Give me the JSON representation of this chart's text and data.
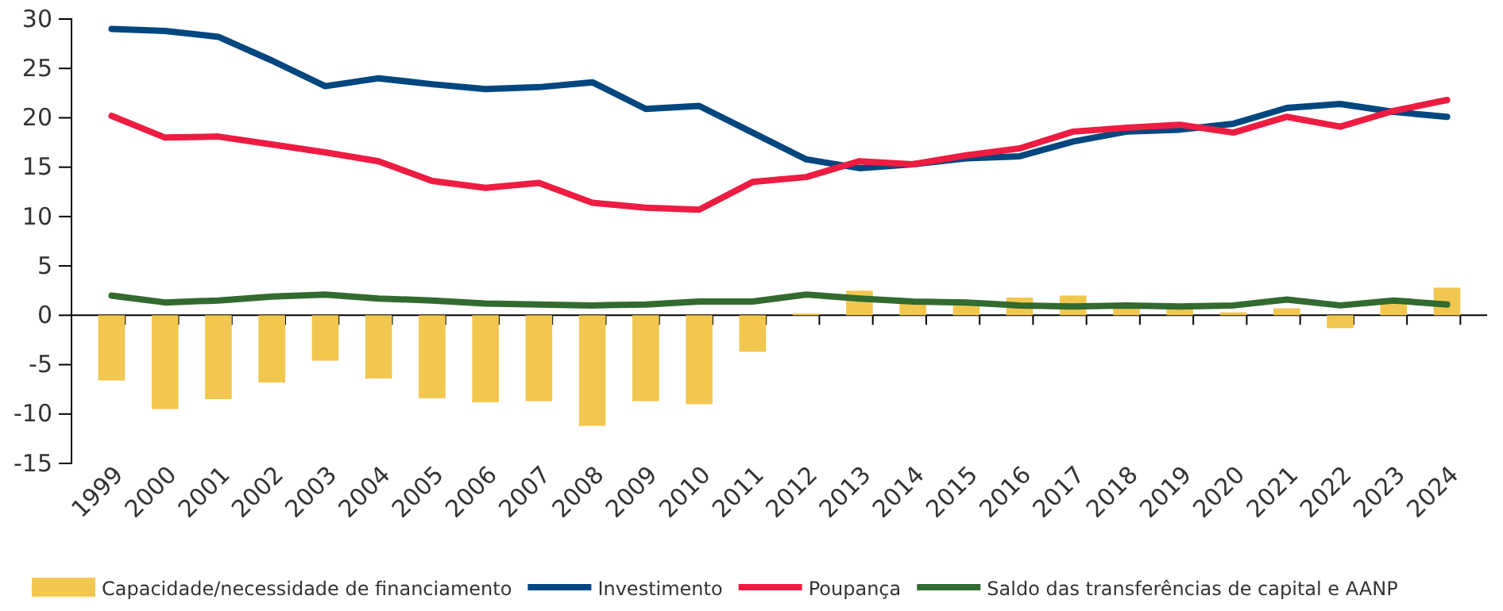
{
  "chart_data": {
    "type": "bar",
    "categories": [
      "1999",
      "2000",
      "2001",
      "2002",
      "2003",
      "2004",
      "2005",
      "2006",
      "2007",
      "2008",
      "2009",
      "2010",
      "2011",
      "2012",
      "2013",
      "2014",
      "2015",
      "2016",
      "2017",
      "2018",
      "2019",
      "2020",
      "2021",
      "2022",
      "2023",
      "2024"
    ],
    "series": [
      {
        "name": "Capacidade/necessidade de financiamento",
        "color": "#f2c750",
        "values": [
          -6.6,
          -9.5,
          -8.5,
          -6.8,
          -4.6,
          -6.4,
          -8.4,
          -8.8,
          -8.7,
          -11.2,
          -8.7,
          -9.0,
          -3.7,
          0.2,
          2.5,
          1.3,
          1.3,
          1.8,
          2.0,
          1.0,
          0.8,
          0.3,
          0.7,
          -1.3,
          1.4,
          2.8
        ]
      },
      {
        "name": "Investimento",
        "type": "line",
        "color": "#00467f",
        "values": [
          29.0,
          28.8,
          28.2,
          25.8,
          23.2,
          24.0,
          23.4,
          22.9,
          23.1,
          23.6,
          20.9,
          21.2,
          18.5,
          15.8,
          14.9,
          15.3,
          15.9,
          16.1,
          17.6,
          18.6,
          18.8,
          19.4,
          21.0,
          21.4,
          20.6,
          20.1
        ]
      },
      {
        "name": "Poupança",
        "type": "line",
        "color": "#ee1c41",
        "values": [
          20.2,
          18.0,
          18.1,
          17.3,
          16.5,
          15.6,
          13.6,
          12.9,
          13.4,
          11.4,
          10.9,
          10.7,
          13.5,
          14.0,
          15.6,
          15.3,
          16.2,
          16.9,
          18.6,
          19.0,
          19.3,
          18.5,
          20.1,
          19.1,
          20.7,
          21.8
        ]
      },
      {
        "name": "Saldo das transferências de capital e AANP",
        "type": "line",
        "color": "#326a2f",
        "values": [
          2.0,
          1.3,
          1.5,
          1.9,
          2.1,
          1.7,
          1.5,
          1.2,
          1.1,
          1.0,
          1.1,
          1.4,
          1.4,
          2.1,
          1.7,
          1.4,
          1.3,
          1.0,
          0.9,
          1.0,
          0.9,
          1.0,
          1.6,
          1.0,
          1.5,
          1.1
        ]
      }
    ],
    "ylim": [
      -15,
      30
    ],
    "yticks": [
      -15,
      -10,
      -5,
      0,
      5,
      10,
      15,
      20,
      25,
      30
    ],
    "legend": "bottom"
  }
}
